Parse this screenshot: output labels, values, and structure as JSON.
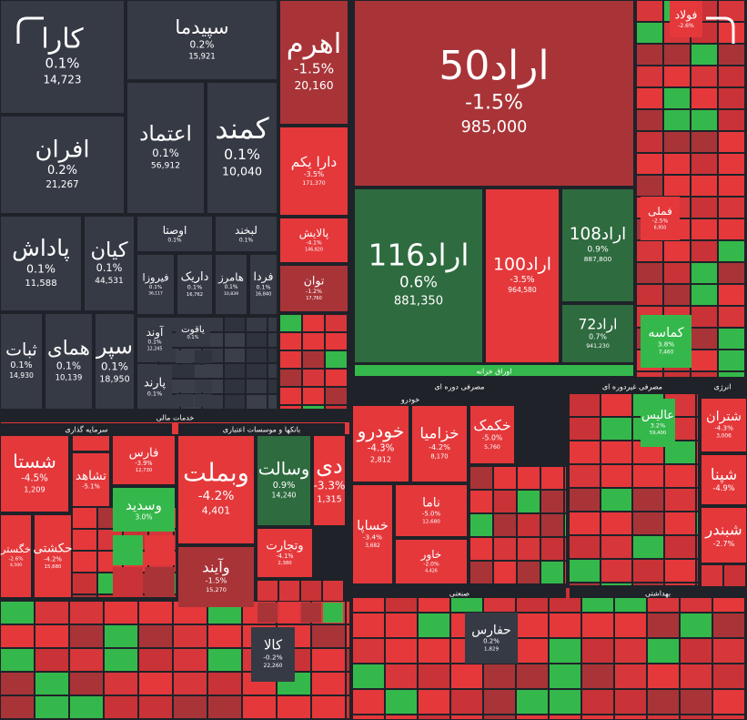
{
  "chart_data": {
    "type": "treemap",
    "sections": [
      "خدمات مالی",
      "سرمایه گذاری",
      "بانکها و موسسات اعتباری",
      "اوراق خزانه",
      "مصرفی دوره ای",
      "خودرو",
      "مصرفی غیردوره ای",
      "انرژی",
      "صنعتی",
      "بهداشتی"
    ],
    "tiles": [
      {
        "name": "کارا",
        "change": 0.1,
        "change_label": "0.1%",
        "volume": "14,723",
        "color": "#363a45"
      },
      {
        "name": "سپیدما",
        "change": 0.2,
        "change_label": "0.2%",
        "volume": "15,921",
        "color": "#363a45"
      },
      {
        "name": "افران",
        "change": 0.2,
        "change_label": "0.2%",
        "volume": "21,267",
        "color": "#363a45"
      },
      {
        "name": "اعتماد",
        "change": 0.1,
        "change_label": "0.1%",
        "volume": "56,912",
        "color": "#363a45"
      },
      {
        "name": "کمند",
        "change": 0.1,
        "change_label": "0.1%",
        "volume": "10,040",
        "color": "#363a45"
      },
      {
        "name": "پاداش",
        "change": 0.1,
        "change_label": "0.1%",
        "volume": "11,588",
        "color": "#363a45"
      },
      {
        "name": "کیان",
        "change": 0.1,
        "change_label": "0.1%",
        "volume": "44,531",
        "color": "#363a45"
      },
      {
        "name": "ثبات",
        "change": 0.1,
        "change_label": "0.1%",
        "volume": "14,930",
        "color": "#363a45"
      },
      {
        "name": "همای",
        "change": 0.1,
        "change_label": "0.1%",
        "volume": "10,139",
        "color": "#363a45"
      },
      {
        "name": "سپر",
        "change": 0.1,
        "change_label": "0.1%",
        "volume": "18,950",
        "color": "#363a45"
      },
      {
        "name": "فیروزا",
        "change": 0.1,
        "change_label": "0.1%",
        "volume": "36,117",
        "color": "#363a45"
      },
      {
        "name": "داریک",
        "change": 0.1,
        "change_label": "0.1%",
        "volume": "16,762",
        "color": "#363a45"
      },
      {
        "name": "هامرز",
        "change": 0.1,
        "change_label": "0.1%",
        "volume": "10,839",
        "color": "#363a45"
      },
      {
        "name": "فردا",
        "change": 0.1,
        "change_label": "0.1%",
        "volume": "16,840",
        "color": "#363a45"
      },
      {
        "name": "اوصتا",
        "change": 0.1,
        "change_label": "0.1%",
        "color": "#363a45"
      },
      {
        "name": "لبخند",
        "change": 0.1,
        "change_label": "0.1%",
        "color": "#363a45"
      },
      {
        "name": "آوند",
        "change": 0.1,
        "change_label": "0.1%",
        "volume": "12,245",
        "color": "#363a45"
      },
      {
        "name": "پارند",
        "change": 0.1,
        "change_label": "0.1%",
        "color": "#363a45"
      },
      {
        "name": "یاقوت",
        "change": 0.1,
        "change_label": "0.1%",
        "color": "#363a45"
      },
      {
        "name": "اهرم",
        "change": -1.5,
        "change_label": "-1.5%",
        "volume": "20,160",
        "color": "#a83438"
      },
      {
        "name": "دارا یکم",
        "change": -3.5,
        "change_label": "-3.5%",
        "volume": "171,370",
        "color": "#e5383b"
      },
      {
        "name": "پالایش",
        "change": -4.1,
        "change_label": "-4.1%",
        "volume": "146,820",
        "color": "#e5383b"
      },
      {
        "name": "توان",
        "change": -1.2,
        "change_label": "-1.2%",
        "volume": "17,760",
        "color": "#a83438"
      },
      {
        "name": "اراد50",
        "change": -1.5,
        "change_label": "-1.5%",
        "volume": "985,000",
        "color": "#a83438"
      },
      {
        "name": "اراد116",
        "change": 0.6,
        "change_label": "0.6%",
        "volume": "881,350",
        "color": "#2e6b3f"
      },
      {
        "name": "اراد100",
        "change": -3.5,
        "change_label": "-3.5%",
        "volume": "964,580",
        "color": "#e5383b"
      },
      {
        "name": "اراد108",
        "change": 0.9,
        "change_label": "0.9%",
        "volume": "887,800",
        "color": "#2e6b3f"
      },
      {
        "name": "اراد72",
        "change": 0.7,
        "change_label": "0.7%",
        "volume": "941,230",
        "color": "#2e6b3f"
      },
      {
        "name": "کماسه",
        "change": 3.8,
        "change_label": "3.8%",
        "volume": "7,460",
        "color": "#35b84b"
      },
      {
        "name": "فولاد",
        "change": -2.6,
        "change_label": "-2.6%",
        "color": "#e5383b"
      },
      {
        "name": "فملی",
        "change": -2.5,
        "change_label": "-2.5%",
        "volume": "6,950",
        "color": "#e5383b"
      },
      {
        "name": "شتران",
        "change": -4.3,
        "change_label": "-4.3%",
        "volume": "3,006",
        "color": "#e5383b"
      },
      {
        "name": "شپنا",
        "change": -4.9,
        "change_label": "-4.9%",
        "color": "#e5383b"
      },
      {
        "name": "شبندر",
        "change": -2.7,
        "change_label": "-2.7%",
        "color": "#e5383b"
      },
      {
        "name": "عالیس",
        "change": 3.2,
        "change_label": "3.2%",
        "volume": "59,400",
        "color": "#35b84b"
      },
      {
        "name": "شستا",
        "change": -4.5,
        "change_label": "-4.5%",
        "volume": "1,209",
        "color": "#e5383b"
      },
      {
        "name": "خگستر",
        "change": -2.6,
        "change_label": "-2.6%",
        "volume": "4,500",
        "color": "#e5383b"
      },
      {
        "name": "حکشتی",
        "change": -4.2,
        "change_label": "-4.2%",
        "volume": "15,680",
        "color": "#e5383b"
      },
      {
        "name": "تشاهد",
        "change": -5.1,
        "change_label": "-5.1%",
        "color": "#e5383b"
      },
      {
        "name": "فارس",
        "change": -3.9,
        "change_label": "-3.9%",
        "volume": "12,730",
        "color": "#e5383b"
      },
      {
        "name": "وسدید",
        "change": 3.0,
        "change_label": "3.0%",
        "color": "#35b84b"
      },
      {
        "name": "وبملت",
        "change": -4.2,
        "change_label": "-4.2%",
        "volume": "4,401",
        "color": "#e5383b"
      },
      {
        "name": "وسالت",
        "change": 0.9,
        "change_label": "0.9%",
        "volume": "14,240",
        "color": "#2e6b3f"
      },
      {
        "name": "دی",
        "change": -3.3,
        "change_label": "-3.3%",
        "volume": "1,315",
        "color": "#e5383b"
      },
      {
        "name": "وآیند",
        "change": -1.5,
        "change_label": "-1.5%",
        "volume": "15,270",
        "color": "#a83438"
      },
      {
        "name": "وتجارت",
        "change": -4.1,
        "change_label": "-4.1%",
        "volume": "2,380",
        "color": "#e5383b"
      },
      {
        "name": "خودرو",
        "change": -4.3,
        "change_label": "-4.3%",
        "volume": "2,812",
        "color": "#e5383b"
      },
      {
        "name": "خزامیا",
        "change": -4.2,
        "change_label": "-4.2%",
        "volume": "8,170",
        "color": "#e5383b"
      },
      {
        "name": "خکمک",
        "change": -5.0,
        "change_label": "-5.0%",
        "volume": "5,760",
        "color": "#e5383b"
      },
      {
        "name": "ناما",
        "change": -5.0,
        "change_label": "-5.0%",
        "volume": "12,680",
        "color": "#e5383b"
      },
      {
        "name": "خساپا",
        "change": -3.4,
        "change_label": "-3.4%",
        "volume": "3,682",
        "color": "#e5383b"
      },
      {
        "name": "خاور",
        "change": -2.0,
        "change_label": "-2.0%",
        "volume": "4,426",
        "color": "#e5383b"
      },
      {
        "name": "حفارس",
        "change": 0.2,
        "change_label": "0.2%",
        "volume": "1,829",
        "color": "#363a45"
      },
      {
        "name": "کالا",
        "change": -0.2,
        "change_label": "-0.2%",
        "volume": "22,260",
        "color": "#363a45"
      }
    ]
  }
}
